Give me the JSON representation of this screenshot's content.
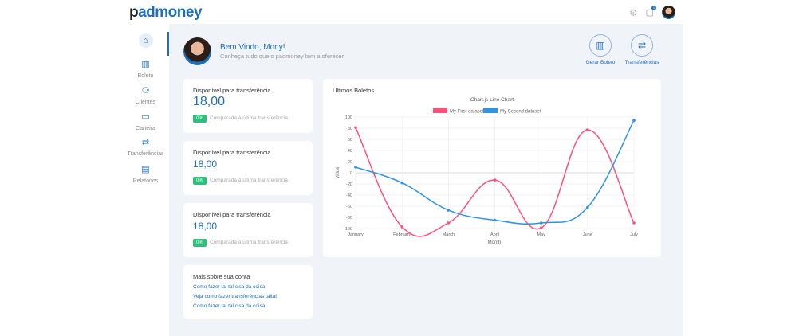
{
  "header": {
    "logo_prefix": "p",
    "logo_text": "admoney",
    "notification_count": "1"
  },
  "sidebar": {
    "items": [
      {
        "label": "",
        "icon": "home-icon"
      },
      {
        "label": "Boleto"
      },
      {
        "label": "Clientes"
      },
      {
        "label": "Carteira"
      },
      {
        "label": "Transferências"
      },
      {
        "label": "Relatórios"
      }
    ]
  },
  "welcome": {
    "title": "Bem Vindo, Mony!",
    "subtitle": "Conheça tudo que o padmoney  tem a oferecer"
  },
  "actions": [
    {
      "label": "Gerar Boleto"
    },
    {
      "label": "Transferências"
    }
  ],
  "cards": [
    {
      "title": "Disponível para transferência",
      "value": "18,00",
      "badge": "0%",
      "compare": "Comparada à última transferência"
    },
    {
      "title": "Disponível para transferência",
      "value": "18,00",
      "badge": "0%",
      "compare": "Comparada à última transferência"
    },
    {
      "title": "Disponível para transferência",
      "value": "18,00",
      "badge": "0%",
      "compare": "Comparada à última transferência"
    }
  ],
  "more": {
    "title": "Mais sobre sua conta",
    "links": [
      "Como fazer tal tal cisa da coisa",
      "Veja como fazer transferências taltal",
      "Como fazer tal tal cisa da coisa"
    ]
  },
  "chart_card": {
    "title": "Ultimos Boletos"
  },
  "chart_data": {
    "type": "line",
    "title": "Chart.js Line Chart",
    "xlabel": "Month",
    "ylabel": "Value",
    "categories": [
      "January",
      "February",
      "March",
      "April",
      "May",
      "June",
      "July"
    ],
    "ylim": [
      -100,
      100
    ],
    "yticks": [
      100,
      80,
      60,
      40,
      20,
      0,
      -20,
      -40,
      -60,
      -80,
      -100
    ],
    "grid": true,
    "legend": "top",
    "series": [
      {
        "name": "My First dataset",
        "color": "#ff4f7a",
        "values": [
          81,
          -97,
          -90,
          -13,
          -99,
          77,
          -90
        ]
      },
      {
        "name": "My Second dataset",
        "color": "#2f94e6",
        "values": [
          10,
          -18,
          -67,
          -85,
          -90,
          -62,
          94
        ]
      }
    ]
  }
}
